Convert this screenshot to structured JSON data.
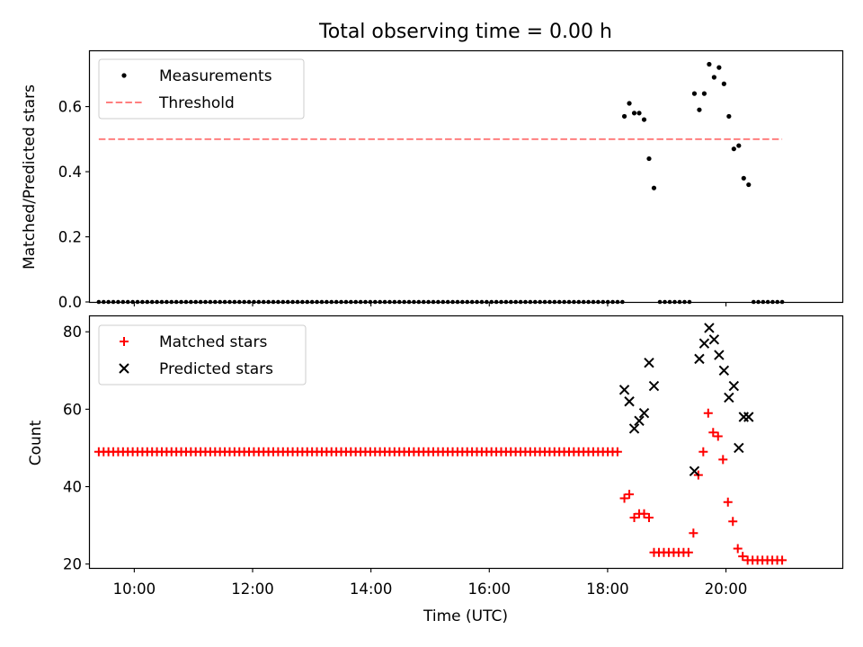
{
  "figure": {
    "title": "Total observing time = 0.00 h"
  },
  "colors": {
    "measurement": "#000000",
    "threshold": "#ff7f7f",
    "matched": "#ff0000",
    "predicted": "#000000"
  },
  "chart_data": [
    {
      "type": "scatter",
      "ylabel": "Matched/Predicted stars",
      "xlabel": "",
      "xlim": [
        "09:15",
        "21:58"
      ],
      "ylim": [
        0,
        0.77
      ],
      "yticks": [
        0.0,
        0.2,
        0.4,
        0.6
      ],
      "ytick_labels": [
        "0.0",
        "0.2",
        "0.4",
        "0.6"
      ],
      "xticks": [
        "10:00",
        "12:00",
        "14:00",
        "16:00",
        "18:00",
        "20:00"
      ],
      "xtick_labels": [],
      "grid": false,
      "legend_position": "upper-left",
      "series": [
        {
          "name": "Measurements",
          "kind": "dots",
          "zero_segments": [
            {
              "start": "09:24",
              "end": "18:15",
              "count": 109
            },
            {
              "start": "18:53",
              "end": "19:23",
              "count": 7
            },
            {
              "start": "20:28",
              "end": "20:57",
              "count": 7
            }
          ],
          "points": [
            {
              "x": "18:17",
              "y": 0.57
            },
            {
              "x": "18:22",
              "y": 0.61
            },
            {
              "x": "18:27",
              "y": 0.58
            },
            {
              "x": "18:32",
              "y": 0.58
            },
            {
              "x": "18:37",
              "y": 0.56
            },
            {
              "x": "18:42",
              "y": 0.44
            },
            {
              "x": "18:47",
              "y": 0.35
            },
            {
              "x": "19:28",
              "y": 0.64
            },
            {
              "x": "19:33",
              "y": 0.59
            },
            {
              "x": "19:38",
              "y": 0.64
            },
            {
              "x": "19:43",
              "y": 0.73
            },
            {
              "x": "19:48",
              "y": 0.69
            },
            {
              "x": "19:53",
              "y": 0.72
            },
            {
              "x": "19:58",
              "y": 0.67
            },
            {
              "x": "20:03",
              "y": 0.57
            },
            {
              "x": "20:08",
              "y": 0.47
            },
            {
              "x": "20:13",
              "y": 0.48
            },
            {
              "x": "20:18",
              "y": 0.38
            },
            {
              "x": "20:23",
              "y": 0.36
            }
          ]
        },
        {
          "name": "Threshold",
          "kind": "dashed-line",
          "x": [
            "09:24",
            "20:57"
          ],
          "y": [
            0.5,
            0.5
          ]
        }
      ]
    },
    {
      "type": "scatter",
      "ylabel": "Count",
      "xlabel": "Time (UTC)",
      "xlim": [
        "09:15",
        "21:58"
      ],
      "ylim": [
        19,
        84
      ],
      "yticks": [
        20,
        40,
        60,
        80
      ],
      "ytick_labels": [
        "20",
        "40",
        "60",
        "80"
      ],
      "xticks": [
        "10:00",
        "12:00",
        "14:00",
        "16:00",
        "18:00",
        "20:00"
      ],
      "xtick_labels": [
        "10:00",
        "12:00",
        "14:00",
        "16:00",
        "18:00",
        "20:00"
      ],
      "grid": false,
      "legend_position": "upper-left",
      "series": [
        {
          "name": "Matched stars",
          "marker": "plus",
          "constant_run": {
            "start": "09:24",
            "end": "18:10",
            "count": 108,
            "y": 49
          },
          "points": [
            {
              "x": "18:17",
              "y": 37
            },
            {
              "x": "18:22",
              "y": 38
            },
            {
              "x": "18:27",
              "y": 32
            },
            {
              "x": "18:32",
              "y": 33
            },
            {
              "x": "18:37",
              "y": 33
            },
            {
              "x": "18:42",
              "y": 32
            },
            {
              "x": "18:47",
              "y": 23
            },
            {
              "x": "18:52",
              "y": 23
            },
            {
              "x": "18:57",
              "y": 23
            },
            {
              "x": "19:02",
              "y": 23
            },
            {
              "x": "19:07",
              "y": 23
            },
            {
              "x": "19:12",
              "y": 23
            },
            {
              "x": "19:17",
              "y": 23
            },
            {
              "x": "19:22",
              "y": 23
            },
            {
              "x": "19:27",
              "y": 28
            },
            {
              "x": "19:32",
              "y": 43
            },
            {
              "x": "19:37",
              "y": 49
            },
            {
              "x": "19:42",
              "y": 59
            },
            {
              "x": "19:47",
              "y": 54
            },
            {
              "x": "19:52",
              "y": 53
            },
            {
              "x": "19:57",
              "y": 47
            },
            {
              "x": "20:02",
              "y": 36
            },
            {
              "x": "20:07",
              "y": 31
            },
            {
              "x": "20:12",
              "y": 24
            },
            {
              "x": "20:17",
              "y": 22
            },
            {
              "x": "20:22",
              "y": 21
            },
            {
              "x": "20:27",
              "y": 21
            },
            {
              "x": "20:32",
              "y": 21
            },
            {
              "x": "20:37",
              "y": 21
            },
            {
              "x": "20:42",
              "y": 21
            },
            {
              "x": "20:47",
              "y": 21
            },
            {
              "x": "20:52",
              "y": 21
            },
            {
              "x": "20:57",
              "y": 21
            }
          ]
        },
        {
          "name": "Predicted stars",
          "marker": "x",
          "points": [
            {
              "x": "18:17",
              "y": 65
            },
            {
              "x": "18:22",
              "y": 62
            },
            {
              "x": "18:27",
              "y": 55
            },
            {
              "x": "18:32",
              "y": 57
            },
            {
              "x": "18:37",
              "y": 59
            },
            {
              "x": "18:42",
              "y": 72
            },
            {
              "x": "18:47",
              "y": 66
            },
            {
              "x": "19:28",
              "y": 44
            },
            {
              "x": "19:33",
              "y": 73
            },
            {
              "x": "19:38",
              "y": 77
            },
            {
              "x": "19:43",
              "y": 81
            },
            {
              "x": "19:48",
              "y": 78
            },
            {
              "x": "19:53",
              "y": 74
            },
            {
              "x": "19:58",
              "y": 70
            },
            {
              "x": "20:03",
              "y": 63
            },
            {
              "x": "20:08",
              "y": 66
            },
            {
              "x": "20:13",
              "y": 50
            },
            {
              "x": "20:18",
              "y": 58
            },
            {
              "x": "20:23",
              "y": 58
            }
          ]
        }
      ]
    }
  ]
}
